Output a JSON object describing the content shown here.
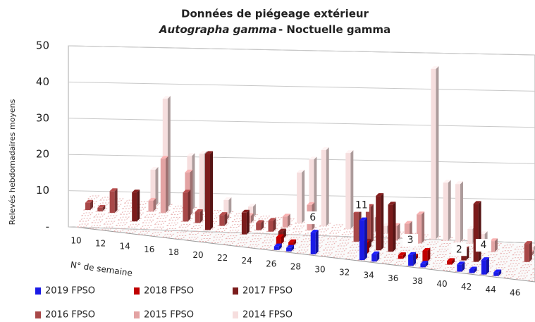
{
  "chart_data": {
    "type": "bar3d",
    "title": "Données de piégeage  extérieur",
    "subtitle": {
      "species": "Autographa gamma",
      "common": "- Noctuelle gamma"
    },
    "y_label": "Relevés hebdomadaires  moyens",
    "x_label": "N° de semaine",
    "categories": [
      "10",
      null,
      "12",
      null,
      "14",
      null,
      "16",
      null,
      "18",
      null,
      "20",
      null,
      "22",
      null,
      "24",
      null,
      "26",
      null,
      "28",
      null,
      "30",
      null,
      "32",
      null,
      "34",
      null,
      "36",
      null,
      "38",
      null,
      "40",
      null,
      "42",
      null,
      "44",
      null,
      "46",
      null
    ],
    "ylim": [
      0,
      50
    ],
    "yticks": [
      {
        "value": 0,
        "label": "-"
      },
      10,
      20,
      30,
      40,
      50
    ],
    "grid": true,
    "series": [
      {
        "name": "2019 FPSO",
        "color": "#1a1ae6",
        "values": [
          0,
          0,
          0,
          0,
          0,
          0,
          0,
          0,
          0,
          0,
          0,
          0,
          0,
          0,
          0,
          0,
          1,
          1,
          0,
          6,
          0,
          0,
          0,
          11,
          2,
          0,
          0,
          3,
          1,
          0,
          0,
          2,
          1,
          4,
          1,
          0,
          0,
          0
        ],
        "value_labels": [
          null,
          null,
          null,
          null,
          null,
          null,
          null,
          null,
          null,
          null,
          null,
          null,
          null,
          null,
          null,
          null,
          null,
          null,
          null,
          "6",
          null,
          null,
          null,
          "11",
          null,
          null,
          null,
          "3",
          null,
          null,
          null,
          "2",
          null,
          "4",
          null,
          null,
          null,
          null
        ]
      },
      {
        "name": "2018 FPSO",
        "color": "#c00000",
        "values": [
          0,
          0,
          0,
          0,
          0,
          0,
          0,
          0,
          0,
          0,
          0,
          0,
          0,
          0,
          0,
          0,
          2,
          1,
          0,
          0,
          0,
          0,
          0,
          3,
          0,
          0,
          1,
          1,
          3,
          0,
          1,
          0,
          0,
          0,
          0,
          0,
          0,
          0
        ]
      },
      {
        "name": "2017 FPSO",
        "color": "#7b1c1c",
        "values": [
          0,
          0,
          0,
          0,
          8,
          0,
          0,
          0,
          0,
          0,
          21,
          0,
          0,
          6,
          0,
          0,
          2,
          0,
          0,
          0,
          0,
          0,
          0,
          2,
          15,
          13,
          0,
          0,
          0,
          0,
          0,
          3,
          16,
          0,
          0,
          0,
          0,
          0
        ]
      },
      {
        "name": "2016 FPSO",
        "color": "#a84848",
        "values": [
          2,
          1,
          6,
          0,
          0,
          0,
          0,
          0,
          8,
          3,
          0,
          3,
          0,
          0,
          2,
          3,
          0,
          0,
          0,
          0,
          0,
          0,
          8,
          10,
          0,
          0,
          0,
          0,
          0,
          0,
          0,
          0,
          0,
          0,
          0,
          0,
          5,
          0
        ]
      },
      {
        "name": "2015 FPSO",
        "color": "#e3a3a3",
        "values": [
          0,
          0,
          0,
          0,
          0,
          3,
          15,
          0,
          12,
          0,
          0,
          1,
          0,
          2,
          0,
          0,
          3,
          0,
          7,
          0,
          0,
          0,
          0,
          0,
          0,
          4,
          5,
          8,
          0,
          0,
          0,
          0,
          0,
          3,
          0,
          0,
          1,
          0
        ]
      },
      {
        "name": "2014 FPSO",
        "color": "#f6dede",
        "values": [
          0,
          0,
          0,
          0,
          0,
          10,
          30,
          0,
          15,
          16,
          0,
          4,
          0,
          3,
          0,
          0,
          0,
          14,
          18,
          21,
          0,
          21,
          0,
          4,
          2,
          0,
          0,
          0,
          47,
          16,
          16,
          4,
          3,
          0,
          0,
          0,
          1,
          0
        ]
      }
    ]
  }
}
